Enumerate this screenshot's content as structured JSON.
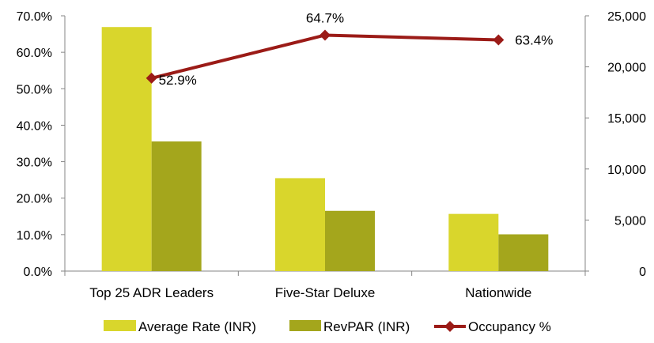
{
  "chart_data": {
    "type": "bar",
    "categories": [
      "Top 25 ADR Leaders",
      "Five-Star Deluxe",
      "Nationwide"
    ],
    "series": [
      {
        "name": "Average Rate (INR)",
        "kind": "bar",
        "axis": "secondary",
        "color": "#d9d62c",
        "values": [
          23900,
          9100,
          5600
        ]
      },
      {
        "name": "RevPAR (INR)",
        "kind": "bar",
        "axis": "secondary",
        "color": "#a4a61c",
        "values": [
          12700,
          5900,
          3600
        ]
      },
      {
        "name": "Occupancy %",
        "kind": "line",
        "axis": "primary",
        "color": "#9b1b17",
        "values": [
          52.9,
          64.7,
          63.4
        ],
        "labels": [
          "52.9%",
          "64.7%",
          "63.4%"
        ]
      }
    ],
    "y_left": {
      "min": 0,
      "max": 70,
      "step": 10,
      "tick_labels": [
        "0.0%",
        "10.0%",
        "20.0%",
        "30.0%",
        "40.0%",
        "50.0%",
        "60.0%",
        "70.0%"
      ]
    },
    "y_right": {
      "min": 0,
      "max": 25000,
      "step": 5000,
      "tick_labels": [
        "0",
        "5,000",
        "10,000",
        "15,000",
        "20,000",
        "25,000"
      ]
    },
    "grid": false,
    "legend_position": "bottom"
  }
}
